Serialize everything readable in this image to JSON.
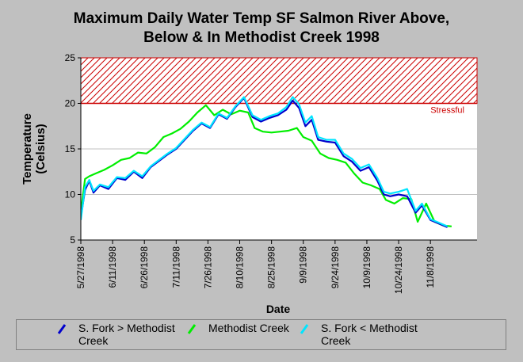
{
  "title_line1": "Maximum Daily Water Temp SF Salmon River Above,",
  "title_line2": "Below & In Methodist Creek 1998",
  "colors": {
    "background": "#c0c0c0",
    "plot_area": "#ffffff",
    "grid": "#c0c0c0",
    "threshold": "#cc0000",
    "s_fork_above": "#0000cc",
    "methodist": "#00ee00",
    "s_fork_below": "#00e5ff"
  },
  "chart_data": {
    "type": "line",
    "title": "Maximum Daily Water Temp SF Salmon River Above, Below & In Methodist Creek 1998",
    "xlabel": "Date",
    "ylabel": "Temperature (Celsius)",
    "ylim": [
      5,
      25
    ],
    "yticks": [
      5,
      10,
      15,
      20,
      25
    ],
    "xlim": [
      "1998-05-27",
      "1998-11-30"
    ],
    "xticks": [
      "5/27/1998",
      "6/11/1998",
      "6/26/1998",
      "7/11/1998",
      "7/26/1998",
      "8/10/1998",
      "8/25/1998",
      "9/9/1998",
      "9/24/1998",
      "10/9/1998",
      "10/24/1998",
      "11/8/1998"
    ],
    "grid": "horizontal",
    "threshold": {
      "value": 20,
      "label": "Stressful",
      "band": [
        20,
        25
      ]
    },
    "series": [
      {
        "name": "S. Fork > Methodist Creek",
        "points": [
          [
            "1998-05-27",
            7.5
          ],
          [
            "1998-05-29",
            10.5
          ],
          [
            "1998-05-31",
            11.5
          ],
          [
            "1998-06-02",
            10.2
          ],
          [
            "1998-06-05",
            11.0
          ],
          [
            "1998-06-09",
            10.6
          ],
          [
            "1998-06-13",
            11.8
          ],
          [
            "1998-06-17",
            11.6
          ],
          [
            "1998-06-21",
            12.5
          ],
          [
            "1998-06-25",
            11.8
          ],
          [
            "1998-06-29",
            13.0
          ],
          [
            "1998-07-03",
            13.7
          ],
          [
            "1998-07-07",
            14.4
          ],
          [
            "1998-07-11",
            15.0
          ],
          [
            "1998-07-15",
            16.0
          ],
          [
            "1998-07-19",
            17.0
          ],
          [
            "1998-07-23",
            17.8
          ],
          [
            "1998-07-27",
            17.3
          ],
          [
            "1998-07-31",
            18.8
          ],
          [
            "1998-08-04",
            18.3
          ],
          [
            "1998-08-08",
            19.6
          ],
          [
            "1998-08-12",
            20.6
          ],
          [
            "1998-08-16",
            18.5
          ],
          [
            "1998-08-20",
            18.0
          ],
          [
            "1998-08-24",
            18.4
          ],
          [
            "1998-08-28",
            18.7
          ],
          [
            "1998-09-01",
            19.3
          ],
          [
            "1998-09-04",
            20.3
          ],
          [
            "1998-09-07",
            19.5
          ],
          [
            "1998-09-10",
            17.5
          ],
          [
            "1998-09-13",
            18.2
          ],
          [
            "1998-09-16",
            16.0
          ],
          [
            "1998-09-20",
            15.8
          ],
          [
            "1998-09-24",
            15.7
          ],
          [
            "1998-09-28",
            14.2
          ],
          [
            "1998-10-02",
            13.6
          ],
          [
            "1998-10-06",
            12.6
          ],
          [
            "1998-10-10",
            13.0
          ],
          [
            "1998-10-14",
            11.5
          ],
          [
            "1998-10-17",
            10.0
          ],
          [
            "1998-10-20",
            9.8
          ],
          [
            "1998-10-24",
            10.0
          ],
          [
            "1998-10-28",
            9.8
          ],
          [
            "1998-11-01",
            8.0
          ],
          [
            "1998-11-04",
            8.8
          ],
          [
            "1998-11-08",
            7.2
          ],
          [
            "1998-11-12",
            6.8
          ],
          [
            "1998-11-16",
            6.4
          ]
        ]
      },
      {
        "name": "Methodist Creek",
        "points": [
          [
            "1998-05-27",
            8.0
          ],
          [
            "1998-05-29",
            11.7
          ],
          [
            "1998-05-31",
            12.0
          ],
          [
            "1998-06-03",
            12.3
          ],
          [
            "1998-06-07",
            12.7
          ],
          [
            "1998-06-11",
            13.2
          ],
          [
            "1998-06-15",
            13.8
          ],
          [
            "1998-06-19",
            14.0
          ],
          [
            "1998-06-23",
            14.6
          ],
          [
            "1998-06-27",
            14.5
          ],
          [
            "1998-07-01",
            15.2
          ],
          [
            "1998-07-05",
            16.3
          ],
          [
            "1998-07-09",
            16.7
          ],
          [
            "1998-07-13",
            17.2
          ],
          [
            "1998-07-17",
            18.0
          ],
          [
            "1998-07-21",
            19.0
          ],
          [
            "1998-07-25",
            19.8
          ],
          [
            "1998-07-29",
            18.7
          ],
          [
            "1998-08-02",
            19.3
          ],
          [
            "1998-08-06",
            18.8
          ],
          [
            "1998-08-10",
            19.2
          ],
          [
            "1998-08-14",
            19.0
          ],
          [
            "1998-08-17",
            17.3
          ],
          [
            "1998-08-21",
            16.9
          ],
          [
            "1998-08-25",
            16.8
          ],
          [
            "1998-08-29",
            16.9
          ],
          [
            "1998-09-02",
            17.0
          ],
          [
            "1998-09-06",
            17.3
          ],
          [
            "1998-09-09",
            16.3
          ],
          [
            "1998-09-13",
            15.9
          ],
          [
            "1998-09-17",
            14.5
          ],
          [
            "1998-09-21",
            14.0
          ],
          [
            "1998-09-25",
            13.8
          ],
          [
            "1998-09-29",
            13.5
          ],
          [
            "1998-10-03",
            12.3
          ],
          [
            "1998-10-07",
            11.3
          ],
          [
            "1998-10-11",
            11.0
          ],
          [
            "1998-10-15",
            10.6
          ],
          [
            "1998-10-18",
            9.4
          ],
          [
            "1998-10-22",
            9.0
          ],
          [
            "1998-10-26",
            9.6
          ],
          [
            "1998-10-30",
            9.5
          ],
          [
            "1998-11-02",
            7.0
          ],
          [
            "1998-11-06",
            9.0
          ],
          [
            "1998-11-10",
            7.0
          ],
          [
            "1998-11-14",
            6.6
          ],
          [
            "1998-11-18",
            6.5
          ]
        ]
      },
      {
        "name": "S. Fork < Methodist Creek",
        "points": [
          [
            "1998-05-27",
            7.2
          ],
          [
            "1998-05-29",
            10.8
          ],
          [
            "1998-05-31",
            11.6
          ],
          [
            "1998-06-02",
            10.4
          ],
          [
            "1998-06-05",
            11.1
          ],
          [
            "1998-06-09",
            10.8
          ],
          [
            "1998-06-13",
            11.9
          ],
          [
            "1998-06-17",
            11.8
          ],
          [
            "1998-06-21",
            12.6
          ],
          [
            "1998-06-25",
            12.0
          ],
          [
            "1998-06-29",
            13.1
          ],
          [
            "1998-07-03",
            13.8
          ],
          [
            "1998-07-07",
            14.5
          ],
          [
            "1998-07-11",
            15.1
          ],
          [
            "1998-07-15",
            16.1
          ],
          [
            "1998-07-19",
            17.1
          ],
          [
            "1998-07-23",
            17.9
          ],
          [
            "1998-07-27",
            17.4
          ],
          [
            "1998-07-31",
            18.9
          ],
          [
            "1998-08-04",
            18.4
          ],
          [
            "1998-08-08",
            19.7
          ],
          [
            "1998-08-12",
            20.7
          ],
          [
            "1998-08-16",
            18.7
          ],
          [
            "1998-08-20",
            18.2
          ],
          [
            "1998-08-24",
            18.6
          ],
          [
            "1998-08-28",
            18.9
          ],
          [
            "1998-09-01",
            19.6
          ],
          [
            "1998-09-04",
            20.7
          ],
          [
            "1998-09-07",
            19.9
          ],
          [
            "1998-09-10",
            17.9
          ],
          [
            "1998-09-13",
            18.6
          ],
          [
            "1998-09-16",
            16.3
          ],
          [
            "1998-09-20",
            16.0
          ],
          [
            "1998-09-24",
            16.0
          ],
          [
            "1998-09-28",
            14.5
          ],
          [
            "1998-10-02",
            13.9
          ],
          [
            "1998-10-06",
            12.9
          ],
          [
            "1998-10-10",
            13.3
          ],
          [
            "1998-10-14",
            11.8
          ],
          [
            "1998-10-17",
            10.3
          ],
          [
            "1998-10-20",
            10.1
          ],
          [
            "1998-10-24",
            10.3
          ],
          [
            "1998-10-28",
            10.6
          ],
          [
            "1998-11-01",
            8.2
          ],
          [
            "1998-11-04",
            9.0
          ],
          [
            "1998-11-08",
            7.3
          ],
          [
            "1998-11-12",
            6.9
          ],
          [
            "1998-11-16",
            6.5
          ]
        ]
      }
    ],
    "legend": "bottom"
  }
}
